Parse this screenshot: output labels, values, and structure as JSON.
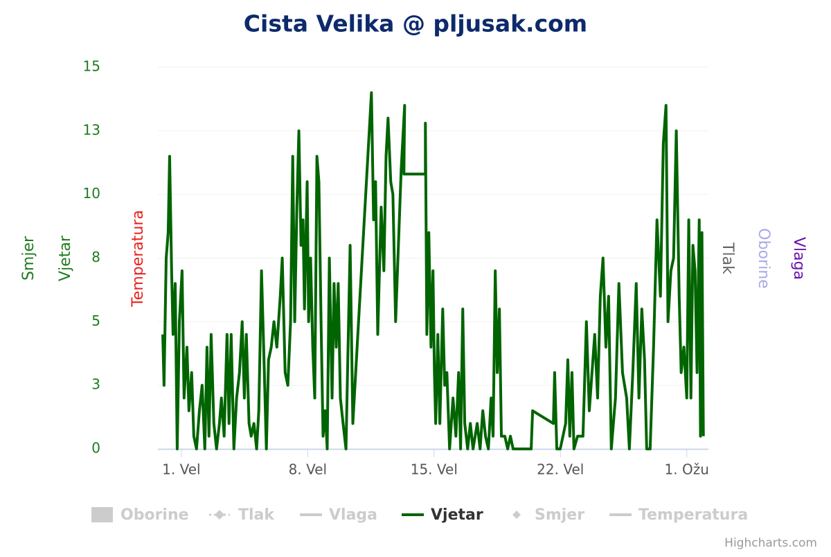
{
  "chart_data": {
    "type": "line",
    "title": "Cista Velika @ pljusak.com",
    "credits": "Highcharts.com",
    "axis_titles": [
      {
        "text": "Smjer",
        "color": "#1e7b1e",
        "side": "left"
      },
      {
        "text": "Vjetar",
        "color": "#1e7b1e",
        "side": "left"
      },
      {
        "text": "Temperatura",
        "color": "#e8231e",
        "side": "left"
      },
      {
        "text": "Tlak",
        "color": "#666666",
        "side": "right"
      },
      {
        "text": "Oborine",
        "color": "#a9a9e8",
        "side": "right"
      },
      {
        "text": "Vlaga",
        "color": "#6a14b0",
        "side": "right"
      }
    ],
    "ylim": [
      0,
      15
    ],
    "yticks": [
      0,
      {
        "value": 2.5,
        "label": "3"
      },
      5,
      {
        "value": 7.5,
        "label": "8"
      },
      10,
      {
        "value": 12.5,
        "label": "13"
      },
      15
    ],
    "xlim": [
      -0.3,
      30.2
    ],
    "xticks": [
      {
        "value": 1,
        "label": "1. Vel"
      },
      {
        "value": 8,
        "label": "8. Vel"
      },
      {
        "value": 15,
        "label": "15. Vel"
      },
      {
        "value": 22,
        "label": "22. Vel"
      },
      {
        "value": 29,
        "label": "1. Ožu"
      }
    ],
    "grid": true,
    "x": [
      -0.03,
      0.04,
      0.16,
      0.27,
      0.35,
      0.46,
      0.54,
      0.66,
      0.77,
      0.89,
      1.04,
      1.15,
      1.31,
      1.42,
      1.57,
      1.69,
      1.84,
      2.0,
      2.15,
      2.3,
      2.42,
      2.53,
      2.65,
      2.8,
      2.95,
      3.11,
      3.22,
      3.37,
      3.53,
      3.64,
      3.76,
      3.91,
      4.06,
      4.22,
      4.37,
      4.49,
      4.6,
      4.75,
      4.87,
      5.02,
      5.17,
      5.29,
      5.44,
      5.56,
      5.71,
      5.83,
      5.98,
      6.13,
      6.29,
      6.48,
      6.59,
      6.75,
      6.9,
      7.05,
      7.17,
      7.28,
      7.4,
      7.51,
      7.63,
      7.74,
      7.82,
      7.97,
      8.05,
      8.16,
      8.28,
      8.39,
      8.51,
      8.62,
      8.74,
      8.85,
      8.97,
      9.08,
      9.2,
      9.35,
      9.46,
      9.58,
      9.69,
      9.81,
      9.96,
      10.12,
      10.35,
      10.5,
      11.53,
      11.65,
      11.76,
      11.88,
      12.07,
      12.22,
      12.34,
      12.45,
      12.6,
      12.72,
      12.87,
      13.18,
      13.37,
      13.33,
      14.52,
      14.52,
      14.6,
      14.71,
      14.83,
      14.94,
      15.02,
      15.09,
      15.21,
      15.32,
      15.48,
      15.59,
      15.71,
      15.86,
      16.05,
      16.21,
      16.36,
      16.47,
      16.59,
      16.7,
      16.86,
      17.01,
      17.16,
      17.39,
      17.55,
      17.7,
      17.85,
      18.01,
      18.16,
      18.27,
      18.39,
      18.5,
      18.62,
      18.73,
      18.92,
      19.08,
      19.23,
      19.38,
      20.38,
      20.46,
      21.61,
      21.68,
      21.8,
      21.99,
      22.29,
      22.41,
      22.52,
      22.64,
      22.75,
      22.95,
      23.25,
      23.44,
      23.6,
      23.75,
      23.9,
      24.06,
      24.21,
      24.36,
      24.52,
      24.67,
      24.82,
      25.05,
      25.24,
      25.44,
      25.67,
      25.82,
      26.01,
      26.2,
      26.35,
      26.51,
      26.66,
      26.78,
      26.97,
      27.16,
      27.35,
      27.54,
      27.7,
      27.85,
      27.96,
      28.12,
      28.27,
      28.42,
      28.58,
      28.69,
      28.84,
      29.0,
      29.11,
      29.23,
      29.34,
      29.46,
      29.57,
      29.69,
      29.76,
      29.84,
      29.92
    ],
    "series": [
      {
        "name": "Oborine",
        "symbol": "square",
        "visible": false
      },
      {
        "name": "Tlak",
        "symbol": "dash-diamond",
        "visible": false
      },
      {
        "name": "Vlaga",
        "symbol": "line",
        "visible": false
      },
      {
        "name": "Vjetar",
        "symbol": "line",
        "visible": true,
        "color": "#006400",
        "values": [
          4.5,
          2.5,
          7.5,
          8.5,
          11.5,
          7,
          4.5,
          6.5,
          0,
          5,
          7,
          2,
          4,
          1.5,
          3,
          0.5,
          0,
          1.5,
          2.5,
          0,
          4,
          0.5,
          4.5,
          1,
          0,
          1,
          2,
          0.5,
          4.5,
          1,
          4.5,
          0,
          2,
          3,
          5,
          2,
          4.5,
          1,
          0.5,
          1,
          0,
          1.5,
          7,
          4,
          0,
          3.5,
          4,
          5,
          4,
          6,
          7.5,
          3,
          2.5,
          5,
          11.5,
          5,
          9.5,
          12.5,
          8,
          9,
          5.5,
          10.5,
          5,
          7.5,
          4,
          2,
          11.5,
          10.5,
          5,
          0.5,
          1.5,
          0,
          7.5,
          2,
          6.5,
          4,
          6.5,
          2,
          1,
          0,
          8,
          1,
          14,
          9,
          10.5,
          4.5,
          9.5,
          7,
          11.5,
          13,
          10.5,
          10,
          5,
          11,
          13.5,
          10.8,
          10.8,
          12.8,
          4.5,
          8.5,
          4,
          7,
          3,
          1,
          4.5,
          1,
          5.5,
          2.5,
          3,
          0,
          2,
          0.5,
          3,
          0,
          5.5,
          1,
          0,
          1,
          0,
          1,
          0,
          1.5,
          0.5,
          0,
          2,
          0.5,
          7,
          3,
          5.5,
          0.5,
          0.5,
          0,
          0.5,
          0,
          0,
          1.5,
          1,
          3,
          0,
          0,
          1,
          3.5,
          0.5,
          3,
          0,
          0.5,
          0.5,
          5,
          1.5,
          3,
          4.5,
          2,
          6,
          7.5,
          4,
          6,
          0,
          2,
          6.5,
          3,
          2,
          0,
          3,
          6.5,
          2,
          5.5,
          3.5,
          0,
          0,
          4,
          9,
          6,
          12,
          13.5,
          5,
          7,
          7.5,
          12.5,
          6,
          3,
          4,
          2,
          9,
          2,
          8,
          7,
          3,
          9,
          0.5,
          8.5,
          0.5
        ]
      },
      {
        "name": "Smjer",
        "symbol": "diamond",
        "visible": false
      },
      {
        "name": "Temperatura",
        "symbol": "line",
        "visible": false
      }
    ]
  }
}
